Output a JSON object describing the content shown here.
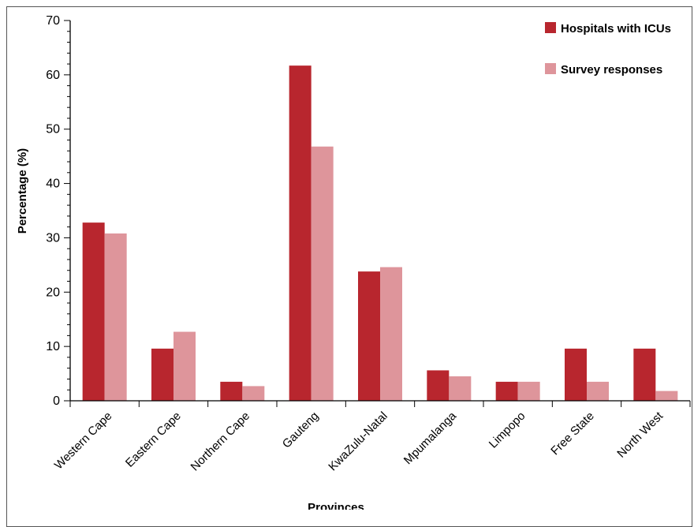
{
  "chart_data": {
    "type": "bar",
    "categories": [
      "Western Cape",
      "Eastern Cape",
      "Northern Cape",
      "Gauteng",
      "KwaZulu-Natal",
      "Mpumalanga",
      "Limpopo",
      "Free State",
      "North West"
    ],
    "series": [
      {
        "name": "Hospitals with ICUs",
        "color": "#b8262e",
        "values": [
          32.8,
          9.6,
          3.5,
          61.7,
          23.8,
          5.6,
          3.5,
          9.6,
          9.6
        ]
      },
      {
        "name": "Survey responses",
        "color": "#de959b",
        "values": [
          30.8,
          12.7,
          2.7,
          46.8,
          24.6,
          4.5,
          3.5,
          3.5,
          1.8
        ]
      }
    ],
    "ylabel": "Percentage (%)",
    "xlabel": "Provinces",
    "ylim": [
      0,
      70
    ],
    "yticks": [
      0,
      10,
      20,
      30,
      40,
      50,
      60,
      70
    ],
    "grid": false,
    "legend_position": "top-right"
  }
}
